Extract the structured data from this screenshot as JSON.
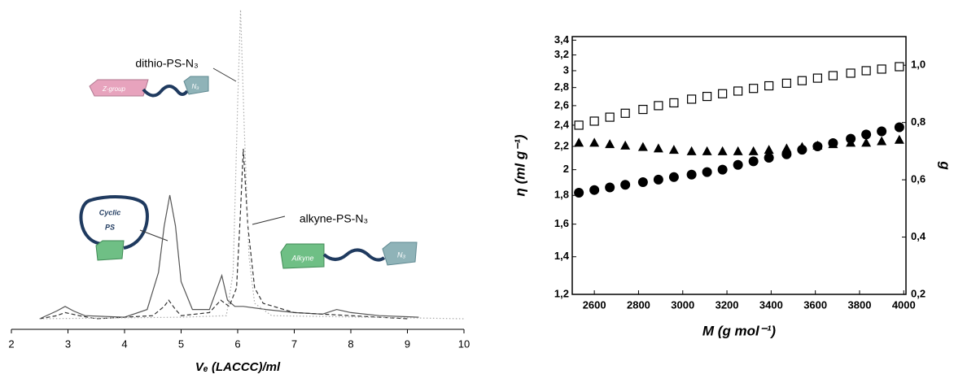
{
  "chart_data": [
    {
      "type": "line",
      "x_label": "Vₑ (LACCC)/ml",
      "xlim": [
        2,
        10
      ],
      "xticks": [
        2,
        3,
        4,
        5,
        6,
        7,
        8,
        9,
        10
      ],
      "ylim": [
        0,
        100
      ],
      "series": [
        {
          "style": "solid",
          "color": "#555555",
          "x": [
            2.5,
            2.8,
            2.95,
            3.1,
            3.3,
            4.0,
            4.4,
            4.6,
            4.7,
            4.8,
            4.9,
            5.0,
            5.2,
            5.5,
            5.62,
            5.72,
            5.82,
            5.95,
            6.1,
            6.5,
            7.0,
            7.5,
            7.75,
            8.0,
            8.5,
            9.2
          ],
          "values": [
            0,
            2.5,
            4,
            2.5,
            1,
            0.5,
            3,
            15,
            30,
            40,
            30,
            12,
            3,
            3,
            9,
            14,
            6,
            4,
            4,
            3,
            2,
            1.5,
            3,
            2,
            1,
            0.5
          ]
        },
        {
          "style": "dashed",
          "color": "#333333",
          "x": [
            2.5,
            2.8,
            2.95,
            3.2,
            3.5,
            4.5,
            4.7,
            4.78,
            4.9,
            5.0,
            5.5,
            5.7,
            5.85,
            5.98,
            6.05,
            6.1,
            6.18,
            6.3,
            6.45,
            7.0,
            8.0,
            9.0
          ],
          "values": [
            0,
            1,
            2,
            1,
            0,
            1,
            4,
            6,
            3,
            1,
            2,
            6,
            4,
            10,
            35,
            55,
            30,
            10,
            5,
            2,
            1,
            0
          ]
        },
        {
          "style": "dotted",
          "color": "#aaaaaa",
          "x": [
            2.5,
            5.0,
            5.8,
            5.92,
            6.0,
            6.05,
            6.12,
            6.2,
            6.3,
            6.6,
            10.0
          ],
          "values": [
            0,
            0.5,
            1,
            15,
            70,
            100,
            60,
            20,
            5,
            1,
            0
          ]
        }
      ],
      "annotations": [
        "dithio-PS-N₃",
        "alkyne-PS-N₃",
        "Z-group",
        "N₃",
        "Cyclic",
        "PS",
        "Alkyne",
        "N₃"
      ]
    },
    {
      "type": "scatter",
      "x_label": "M (g mol⁻¹)",
      "y_label": "η (ml g⁻¹)",
      "y2_label": "g",
      "xlim": [
        2500,
        4010
      ],
      "xticks": [
        2600,
        2800,
        3000,
        3200,
        3400,
        3600,
        3800,
        4000
      ],
      "ylim": [
        1.2,
        3.45
      ],
      "log_y": true,
      "yticks": [
        {
          "value": 1.2,
          "label": "1,2"
        },
        {
          "value": 1.4,
          "label": "1,4"
        },
        {
          "value": 1.6,
          "label": "1,6"
        },
        {
          "value": 1.8,
          "label": "1,8"
        },
        2,
        {
          "value": 2.2,
          "label": "2,2"
        },
        {
          "value": 2.4,
          "label": "2,4"
        },
        {
          "value": 2.6,
          "label": "2,6"
        },
        {
          "value": 2.8,
          "label": "2,8"
        },
        3,
        {
          "value": 3.2,
          "label": "3,2"
        },
        {
          "value": 3.4,
          "label": "3,4"
        }
      ],
      "y2lim": [
        0.2,
        1.1
      ],
      "y2ticks": [
        {
          "value": 0.2,
          "label": "0,2"
        },
        {
          "value": 0.4,
          "label": "0,4"
        },
        {
          "value": 0.6,
          "label": "0,6"
        },
        {
          "value": 0.8,
          "label": "0,8"
        },
        {
          "value": 1.0,
          "label": "1,0"
        }
      ],
      "x": [
        2530,
        2600,
        2670,
        2740,
        2820,
        2890,
        2960,
        3040,
        3110,
        3180,
        3250,
        3320,
        3390,
        3470,
        3540,
        3610,
        3680,
        3760,
        3830,
        3900,
        3980
      ],
      "series": [
        {
          "marker": "square-open",
          "color": "#000000",
          "axis": "y",
          "values": [
            2.4,
            2.44,
            2.48,
            2.52,
            2.56,
            2.6,
            2.63,
            2.67,
            2.7,
            2.73,
            2.76,
            2.79,
            2.82,
            2.85,
            2.88,
            2.91,
            2.94,
            2.97,
            3.0,
            3.02,
            3.05
          ]
        },
        {
          "marker": "triangle",
          "color": "#000000",
          "axis": "y2",
          "values": [
            0.73,
            0.73,
            0.725,
            0.72,
            0.715,
            0.71,
            0.705,
            0.7,
            0.7,
            0.7,
            0.7,
            0.7,
            0.705,
            0.71,
            0.715,
            0.72,
            0.725,
            0.73,
            0.73,
            0.735,
            0.74
          ]
        },
        {
          "marker": "circle",
          "color": "#000000",
          "axis": "y",
          "values": [
            1.82,
            1.84,
            1.86,
            1.88,
            1.9,
            1.92,
            1.94,
            1.96,
            1.98,
            2.0,
            2.04,
            2.07,
            2.1,
            2.13,
            2.17,
            2.2,
            2.23,
            2.27,
            2.31,
            2.34,
            2.38
          ]
        }
      ]
    }
  ]
}
